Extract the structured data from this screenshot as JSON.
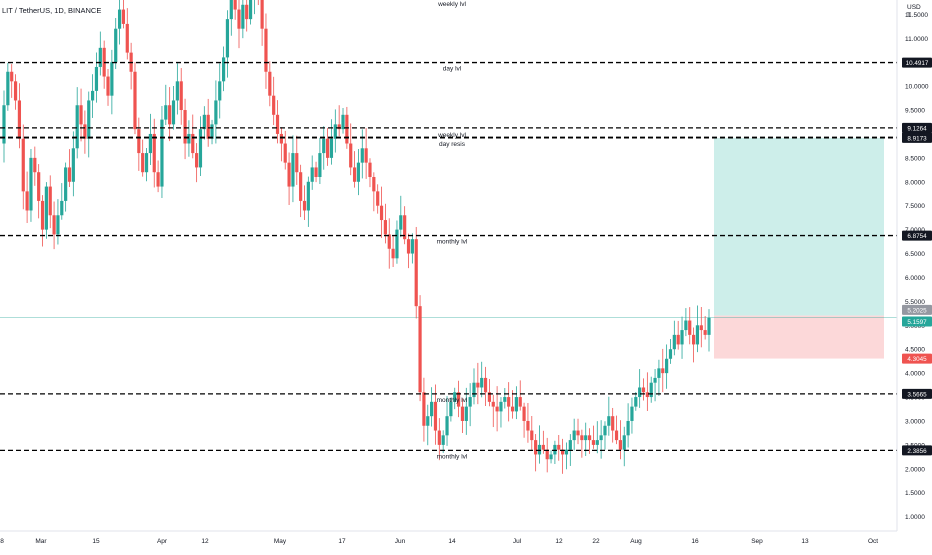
{
  "header": {
    "symbol_title": "LIT / TetherUS, 1D, BINANCE",
    "currency_line1": "USD",
    "currency_line2": "T"
  },
  "chart_data": {
    "type": "candlestick",
    "ylim": [
      0.7,
      11.8
    ],
    "y_ticks": [
      "1.0000",
      "1.5000",
      "2.0000",
      "2.5000",
      "3.0000",
      "3.5000",
      "4.0000",
      "4.5000",
      "5.0000",
      "5.5000",
      "6.0000",
      "6.5000",
      "7.0000",
      "7.5000",
      "8.0000",
      "8.5000",
      "9.0000",
      "9.5000",
      "10.0000",
      "10.5000",
      "11.0000",
      "11.5000"
    ],
    "x_ticks": [
      "8",
      "Mar",
      "15",
      "Apr",
      "12",
      "May",
      "17",
      "Jun",
      "14",
      "Jul",
      "12",
      "22",
      "Aug",
      "16",
      "Sep",
      "13",
      "Oct"
    ],
    "levels": [
      {
        "price": 10.4917,
        "label": "day lvl",
        "tag": "10.4917"
      },
      {
        "price": 9.1264,
        "label": "weekly lvl",
        "tag": "9.1264"
      },
      {
        "price": 8.9296,
        "label": "",
        "tag": "8.9296"
      },
      {
        "price": 8.9173,
        "label": "day resis",
        "tag": "8.9173"
      },
      {
        "price": 6.8754,
        "label": "monthly lvl",
        "tag": "6.8754"
      },
      {
        "price": 3.5665,
        "label": "monthly lvl",
        "tag": "3.5665"
      },
      {
        "price": 2.3856,
        "label": "monthly lvl",
        "tag": "2.3856"
      }
    ],
    "top_label": "weekly lvl",
    "price_tags": {
      "entry_upper": "5.2025",
      "current": "5.1597",
      "stop": "4.3045"
    },
    "position": {
      "entry": 5.2025,
      "target": 8.9173,
      "stop": 4.3045,
      "profit_color": "#cdeeea",
      "loss_color": "#fcd8d9"
    },
    "colors": {
      "up": "#26a69a",
      "down": "#ef5350",
      "level": "#000000",
      "tag_bg": "#131722",
      "tag_green": "#26a69a",
      "tag_red": "#ef5350",
      "tag_grey": "#9598a1"
    },
    "closes": [
      9.6,
      10.3,
      10.1,
      9.7,
      8.9,
      7.8,
      7.4,
      8.5,
      8.2,
      7.6,
      7.0,
      7.9,
      7.3,
      6.9,
      7.3,
      7.6,
      8.3,
      8.0,
      8.7,
      9.6,
      9.2,
      8.9,
      9.7,
      9.9,
      10.4,
      10.8,
      10.2,
      9.8,
      10.5,
      11.2,
      11.6,
      11.3,
      10.7,
      10.3,
      9.1,
      8.6,
      8.2,
      8.6,
      9.0,
      8.2,
      7.9,
      9.3,
      9.6,
      9.2,
      9.7,
      10.1,
      9.5,
      8.8,
      9.0,
      8.6,
      8.3,
      9.1,
      9.4,
      8.9,
      9.2,
      9.7,
      10.1,
      10.6,
      11.4,
      11.9,
      11.6,
      11.2,
      11.7,
      11.4,
      11.9,
      12.3,
      11.8,
      11.2,
      10.3,
      9.8,
      9.4,
      9.0,
      8.8,
      8.4,
      7.9,
      8.6,
      8.2,
      7.6,
      7.4,
      8.0,
      8.3,
      8.1,
      8.6,
      8.9,
      8.5,
      8.9,
      9.2,
      9.1,
      9.4,
      8.8,
      8.3,
      8.0,
      8.4,
      8.7,
      8.4,
      8.1,
      7.8,
      7.5,
      7.2,
      6.9,
      6.6,
      6.4,
      7.0,
      7.3,
      6.8,
      6.5,
      6.8,
      5.4,
      3.6,
      2.9,
      3.1,
      3.4,
      2.8,
      2.5,
      2.7,
      3.1,
      3.4,
      3.6,
      3.3,
      3.0,
      3.3,
      3.5,
      3.8,
      3.7,
      3.9,
      3.6,
      3.4,
      3.3,
      3.2,
      3.4,
      3.5,
      3.3,
      3.2,
      3.5,
      3.3,
      3.0,
      2.8,
      2.6,
      2.3,
      2.5,
      2.4,
      2.2,
      2.3,
      2.5,
      2.4,
      2.3,
      2.4,
      2.6,
      2.8,
      2.7,
      2.6,
      2.7,
      2.6,
      2.5,
      2.6,
      2.7,
      2.9,
      3.1,
      2.8,
      2.6,
      2.4,
      2.7,
      3.0,
      3.3,
      3.5,
      3.7,
      3.6,
      3.5,
      3.8,
      3.9,
      4.1,
      4.0,
      4.3,
      4.5,
      4.8,
      4.6,
      4.9,
      5.1,
      4.8,
      4.6,
      5.0,
      4.9,
      4.8,
      5.16
    ]
  }
}
